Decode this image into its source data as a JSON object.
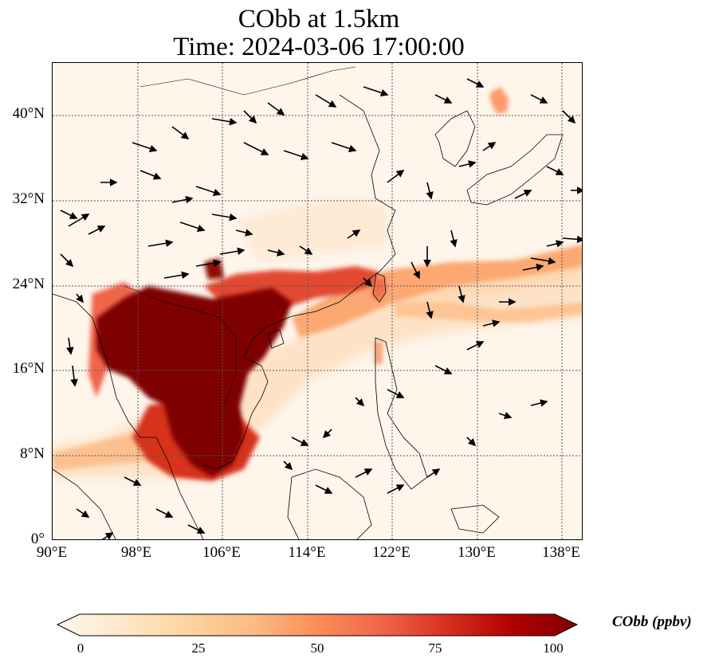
{
  "title": {
    "line1": "CObb at 1.5km",
    "line2": "Time: 2024-03-06 17:00:00"
  },
  "axes": {
    "lat_labels": [
      "40°N",
      "32°N",
      "24°N",
      "16°N",
      "8°N",
      "0°"
    ],
    "lon_labels": [
      "90°E",
      "98°E",
      "106°E",
      "114°E",
      "122°E",
      "130°E",
      "138°E"
    ],
    "gridline_style": "dotted"
  },
  "colorbar": {
    "label": "CObb (ppbv)",
    "ticks": [
      "0",
      "25",
      "50",
      "75",
      "100"
    ],
    "range": [
      0,
      100
    ],
    "extend": "both",
    "colormap": "OrRd",
    "stops": [
      "#fff7ec",
      "#fee8c8",
      "#fdd49e",
      "#fdbb84",
      "#fc8d59",
      "#ef6548",
      "#d7301f",
      "#b30000",
      "#7f0000"
    ]
  },
  "map": {
    "lon_range": [
      90,
      140
    ],
    "lat_range": [
      0,
      45
    ],
    "field": "CObb",
    "level": "1.5km",
    "wind_vectors": "black arrows"
  }
}
